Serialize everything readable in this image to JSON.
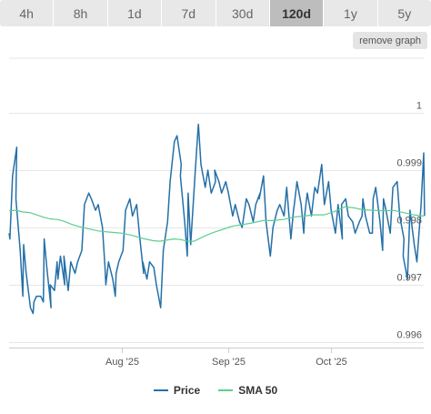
{
  "tabs": [
    {
      "label": "4h",
      "active": false
    },
    {
      "label": "8h",
      "active": false
    },
    {
      "label": "1d",
      "active": false
    },
    {
      "label": "7d",
      "active": false
    },
    {
      "label": "30d",
      "active": false
    },
    {
      "label": "120d",
      "active": true
    },
    {
      "label": "1y",
      "active": false
    },
    {
      "label": "5y",
      "active": false
    }
  ],
  "remove_graph_label": "remove graph",
  "colors": {
    "price": "#2470a8",
    "sma": "#5bcf8f",
    "grid": "#e6e6e6"
  },
  "chart_data": {
    "type": "line",
    "title": "",
    "xlabel": "",
    "ylabel": "",
    "ylim": [
      0.996,
      1.0
    ],
    "y_ticks": [
      {
        "value": 1.0,
        "label": "1"
      },
      {
        "value": 0.999,
        "label": "0.999"
      },
      {
        "value": 0.998,
        "label": "0.998"
      },
      {
        "value": 0.997,
        "label": "0.997"
      },
      {
        "value": 0.996,
        "label": "0.996"
      }
    ],
    "x_range": [
      "2025-06-29",
      "2025-10-28"
    ],
    "x_ticks": [
      {
        "date": "2025-08-01",
        "label": "Aug '25"
      },
      {
        "date": "2025-09-01",
        "label": "Sep '25"
      },
      {
        "date": "2025-10-01",
        "label": "Oct '25"
      }
    ],
    "grid": true,
    "legend_position": "bottom-center",
    "series": [
      {
        "name": "Price",
        "points": [
          [
            "2025-06-29",
            0.9979
          ],
          [
            "2025-06-29",
            0.9978
          ],
          [
            "2025-06-30",
            0.9989
          ],
          [
            "2025-07-01",
            0.9994
          ],
          [
            "2025-07-01",
            0.9985
          ],
          [
            "2025-07-02",
            0.9976
          ],
          [
            "2025-07-03",
            0.9968
          ],
          [
            "2025-07-03",
            0.9977
          ],
          [
            "2025-07-04",
            0.9972
          ],
          [
            "2025-07-05",
            0.9966
          ],
          [
            "2025-07-06",
            0.9965
          ],
          [
            "2025-07-06",
            0.9967
          ],
          [
            "2025-07-07",
            0.9968
          ],
          [
            "2025-07-08",
            0.9968
          ],
          [
            "2025-07-09",
            0.9967
          ],
          [
            "2025-07-09",
            0.9978
          ],
          [
            "2025-07-10",
            0.9973
          ],
          [
            "2025-07-11",
            0.9966
          ],
          [
            "2025-07-11",
            0.997
          ],
          [
            "2025-07-12",
            0.9969
          ],
          [
            "2025-07-13",
            0.9974
          ],
          [
            "2025-07-13",
            0.9971
          ],
          [
            "2025-07-14",
            0.9975
          ],
          [
            "2025-07-15",
            0.997
          ],
          [
            "2025-07-15",
            0.9975
          ],
          [
            "2025-07-16",
            0.9969
          ],
          [
            "2025-07-17",
            0.9974
          ],
          [
            "2025-07-18",
            0.9972
          ],
          [
            "2025-07-19",
            0.9974
          ],
          [
            "2025-07-20",
            0.9976
          ],
          [
            "2025-07-21",
            0.9984
          ],
          [
            "2025-07-22",
            0.9986
          ],
          [
            "2025-07-23",
            0.9985
          ],
          [
            "2025-07-24",
            0.9983
          ],
          [
            "2025-07-25",
            0.9984
          ],
          [
            "2025-07-26",
            0.998
          ],
          [
            "2025-07-27",
            0.9973
          ],
          [
            "2025-07-27",
            0.997
          ],
          [
            "2025-07-28",
            0.9974
          ],
          [
            "2025-07-29",
            0.9971
          ],
          [
            "2025-07-30",
            0.9968
          ],
          [
            "2025-07-30",
            0.9972
          ],
          [
            "2025-07-31",
            0.9974
          ],
          [
            "2025-08-01",
            0.9976
          ],
          [
            "2025-08-02",
            0.9983
          ],
          [
            "2025-08-03",
            0.9985
          ],
          [
            "2025-08-04",
            0.9982
          ],
          [
            "2025-08-05",
            0.9984
          ],
          [
            "2025-08-06",
            0.9979
          ],
          [
            "2025-08-07",
            0.9972
          ],
          [
            "2025-08-07",
            0.9974
          ],
          [
            "2025-08-08",
            0.9971
          ],
          [
            "2025-08-09",
            0.9974
          ],
          [
            "2025-08-10",
            0.9973
          ],
          [
            "2025-08-11",
            0.997
          ],
          [
            "2025-08-12",
            0.9966
          ],
          [
            "2025-08-13",
            0.9976
          ],
          [
            "2025-08-14",
            0.9981
          ],
          [
            "2025-08-15",
            0.9988
          ],
          [
            "2025-08-16",
            0.9995
          ],
          [
            "2025-08-17",
            0.9996
          ],
          [
            "2025-08-18",
            0.9991
          ],
          [
            "2025-08-18",
            0.9989
          ],
          [
            "2025-08-19",
            0.9981
          ],
          [
            "2025-08-20",
            0.9975
          ],
          [
            "2025-08-20",
            0.9986
          ],
          [
            "2025-08-21",
            0.9977
          ],
          [
            "2025-08-22",
            0.9989
          ],
          [
            "2025-08-23",
            0.9996
          ],
          [
            "2025-08-23",
            0.9998
          ],
          [
            "2025-08-24",
            0.9991
          ],
          [
            "2025-08-25",
            0.9987
          ],
          [
            "2025-08-26",
            0.999
          ],
          [
            "2025-08-26",
            0.9989
          ],
          [
            "2025-08-27",
            0.9986
          ],
          [
            "2025-08-28",
            0.9988
          ],
          [
            "2025-08-28",
            0.999
          ],
          [
            "2025-08-29",
            0.9988
          ],
          [
            "2025-08-30",
            0.9986
          ],
          [
            "2025-08-31",
            0.9988
          ],
          [
            "2025-09-01",
            0.9986
          ],
          [
            "2025-09-02",
            0.9982
          ],
          [
            "2025-09-03",
            0.9984
          ],
          [
            "2025-09-04",
            0.9981
          ],
          [
            "2025-09-05",
            0.998
          ],
          [
            "2025-09-06",
            0.9985
          ],
          [
            "2025-09-07",
            0.9984
          ],
          [
            "2025-09-08",
            0.9981
          ],
          [
            "2025-09-09",
            0.9984
          ],
          [
            "2025-09-10",
            0.9986
          ],
          [
            "2025-09-10",
            0.9985
          ],
          [
            "2025-09-11",
            0.9989
          ],
          [
            "2025-09-12",
            0.9981
          ],
          [
            "2025-09-13",
            0.9975
          ],
          [
            "2025-09-14",
            0.998
          ],
          [
            "2025-09-15",
            0.9983
          ],
          [
            "2025-09-16",
            0.9984
          ],
          [
            "2025-09-17",
            0.9982
          ],
          [
            "2025-09-18",
            0.9987
          ],
          [
            "2025-09-19",
            0.9978
          ],
          [
            "2025-09-20",
            0.9983
          ],
          [
            "2025-09-20",
            0.9984
          ],
          [
            "2025-09-21",
            0.9988
          ],
          [
            "2025-09-22",
            0.9984
          ],
          [
            "2025-09-23",
            0.9979
          ],
          [
            "2025-09-23",
            0.9982
          ],
          [
            "2025-09-24",
            0.9986
          ],
          [
            "2025-09-25",
            0.9982
          ],
          [
            "2025-09-26",
            0.9986
          ],
          [
            "2025-09-26",
            0.9987
          ],
          [
            "2025-09-27",
            0.9986
          ],
          [
            "2025-09-28",
            0.9991
          ],
          [
            "2025-09-29",
            0.9984
          ],
          [
            "2025-09-30",
            0.9988
          ],
          [
            "2025-10-01",
            0.9983
          ],
          [
            "2025-10-02",
            0.9979
          ],
          [
            "2025-10-03",
            0.9984
          ],
          [
            "2025-10-04",
            0.9978
          ],
          [
            "2025-10-04",
            0.9984
          ],
          [
            "2025-10-05",
            0.9985
          ],
          [
            "2025-10-06",
            0.9982
          ],
          [
            "2025-10-07",
            0.9981
          ],
          [
            "2025-10-08",
            0.9979
          ],
          [
            "2025-10-09",
            0.9981
          ],
          [
            "2025-10-10",
            0.9982
          ],
          [
            "2025-10-10",
            0.9985
          ],
          [
            "2025-10-11",
            0.9982
          ],
          [
            "2025-10-12",
            0.9979
          ],
          [
            "2025-10-13",
            0.9979
          ],
          [
            "2025-10-13",
            0.9985
          ],
          [
            "2025-10-14",
            0.9987
          ],
          [
            "2025-10-15",
            0.9981
          ],
          [
            "2025-10-16",
            0.9976
          ],
          [
            "2025-10-16",
            0.9985
          ],
          [
            "2025-10-17",
            0.9983
          ],
          [
            "2025-10-18",
            0.9979
          ],
          [
            "2025-10-19",
            0.9987
          ],
          [
            "2025-10-20",
            0.9988
          ],
          [
            "2025-10-21",
            0.9982
          ],
          [
            "2025-10-22",
            0.9978
          ],
          [
            "2025-10-22",
            0.9975
          ],
          [
            "2025-10-23",
            0.9971
          ],
          [
            "2025-10-24",
            0.9983
          ],
          [
            "2025-10-25",
            0.9977
          ],
          [
            "2025-10-26",
            0.9974
          ],
          [
            "2025-10-27",
            0.9984
          ],
          [
            "2025-10-28",
            0.9993
          ],
          [
            "2025-10-28",
            0.9982
          ]
        ]
      },
      {
        "name": "SMA 50",
        "points": [
          [
            "2025-06-29",
            0.99829
          ],
          [
            "2025-07-01",
            0.9983
          ],
          [
            "2025-07-03",
            0.99827
          ],
          [
            "2025-07-05",
            0.99826
          ],
          [
            "2025-07-07",
            0.99822
          ],
          [
            "2025-07-09",
            0.99818
          ],
          [
            "2025-07-11",
            0.99815
          ],
          [
            "2025-07-13",
            0.99814
          ],
          [
            "2025-07-15",
            0.99811
          ],
          [
            "2025-07-17",
            0.99806
          ],
          [
            "2025-07-19",
            0.99802
          ],
          [
            "2025-07-22",
            0.99798
          ],
          [
            "2025-07-25",
            0.99794
          ],
          [
            "2025-07-28",
            0.99792
          ],
          [
            "2025-08-01",
            0.9979
          ],
          [
            "2025-08-04",
            0.99786
          ],
          [
            "2025-08-07",
            0.99781
          ],
          [
            "2025-08-10",
            0.99777
          ],
          [
            "2025-08-12",
            0.99776
          ],
          [
            "2025-08-14",
            0.99778
          ],
          [
            "2025-08-16",
            0.9978
          ],
          [
            "2025-08-18",
            0.99779
          ],
          [
            "2025-08-20",
            0.99776
          ],
          [
            "2025-08-22",
            0.99776
          ],
          [
            "2025-08-24",
            0.99782
          ],
          [
            "2025-08-27",
            0.9979
          ],
          [
            "2025-08-30",
            0.99796
          ],
          [
            "2025-09-02",
            0.99802
          ],
          [
            "2025-09-05",
            0.99805
          ],
          [
            "2025-09-08",
            0.99808
          ],
          [
            "2025-09-11",
            0.99812
          ],
          [
            "2025-09-14",
            0.99812
          ],
          [
            "2025-09-17",
            0.99814
          ],
          [
            "2025-09-20",
            0.99818
          ],
          [
            "2025-09-23",
            0.9982
          ],
          [
            "2025-09-26",
            0.99822
          ],
          [
            "2025-09-29",
            0.99822
          ],
          [
            "2025-10-02",
            0.99828
          ],
          [
            "2025-10-05",
            0.99836
          ],
          [
            "2025-10-08",
            0.99834
          ],
          [
            "2025-10-10",
            0.99831
          ],
          [
            "2025-10-13",
            0.9983
          ],
          [
            "2025-10-16",
            0.99829
          ],
          [
            "2025-10-19",
            0.9983
          ],
          [
            "2025-10-22",
            0.99826
          ],
          [
            "2025-10-25",
            0.99822
          ],
          [
            "2025-10-28",
            0.9982
          ]
        ]
      }
    ]
  }
}
